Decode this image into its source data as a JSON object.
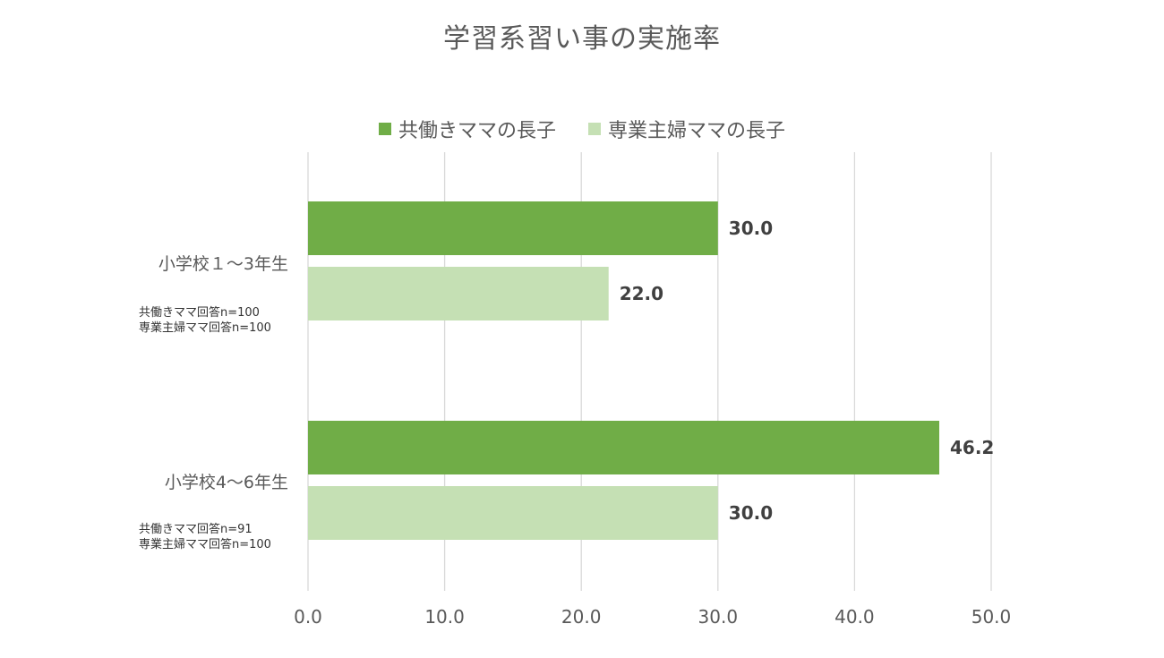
{
  "chart_data": {
    "type": "bar",
    "orientation": "horizontal",
    "title": "学習系習い事の実施率",
    "categories": [
      "小学校１～3年生",
      "小学校4～6年生"
    ],
    "category_notes": [
      [
        "共働きママ回答n=100",
        "専業主婦ママ回答n=100"
      ],
      [
        "共働きママ回答n=91",
        "専業主婦ママ回答n=100"
      ]
    ],
    "series": [
      {
        "name": "共働きママの長子",
        "values": [
          30.0,
          46.2
        ],
        "color": "#70ad47"
      },
      {
        "name": "専業主婦ママの長子",
        "values": [
          22.0,
          30.0
        ],
        "color": "#c5e0b4"
      }
    ],
    "xlim": [
      0,
      50
    ],
    "x_ticks": [
      "0.0",
      "10.0",
      "20.0",
      "30.0",
      "40.0",
      "50.0"
    ],
    "data_labels": [
      [
        "30.0",
        "46.2"
      ],
      [
        "22.0",
        "30.0"
      ]
    ],
    "grid": true,
    "legend_position": "top"
  }
}
